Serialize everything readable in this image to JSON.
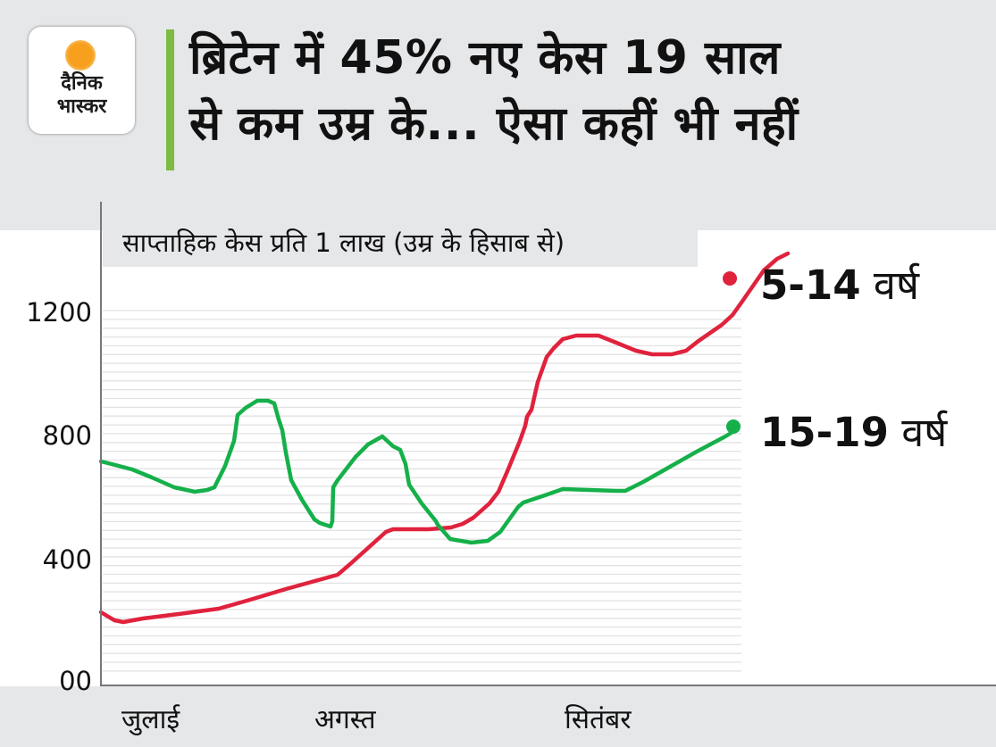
{
  "header": {
    "logo": {
      "line1": "दैनिक",
      "line2": "भास्कर",
      "icon": "sun-icon",
      "sun_color": "#f7a01e"
    },
    "accent_color": "#7dbb42",
    "title_line1": "ब्रिटेन में 45% नए केस 19 साल",
    "title_line2": "से कम उम्र के... ऐसा कहीं भी नहीं"
  },
  "chart": {
    "subtitle": "साप्ताहिक केस प्रति 1 लाख (उम्र के हिसाब से)",
    "y_ticks": [
      "1200",
      "800",
      "400",
      "00"
    ],
    "x_ticks": [
      "जुलाई",
      "अगस्त",
      "सितंबर"
    ],
    "legend": [
      {
        "num": "5-14",
        "unit": " वर्ष",
        "color": "#e0223d"
      },
      {
        "num": "15-19",
        "unit": " वर्ष",
        "color": "#15b04a"
      }
    ]
  },
  "chart_data": {
    "type": "line",
    "title": "ब्रिटेन में 45% नए केस 19 साल से कम उम्र के... ऐसा कहीं भी नहीं",
    "subtitle": "साप्ताहिक केस प्रति 1 लाख (उम्र के हिसाब से)",
    "xlabel": "",
    "ylabel": "साप्ताहिक केस प्रति 1 लाख",
    "x_tick_labels": [
      "जुलाई",
      "अगस्त",
      "सितंबर"
    ],
    "y_tick_labels": [
      "00",
      "400",
      "800",
      "1200"
    ],
    "ylim": [
      0,
      1350
    ],
    "grid": true,
    "legend_position": "right, inline at line ends",
    "x": [
      "Jul-start",
      "Jul-mid",
      "Jul-late",
      "Aug-early",
      "Aug-mid",
      "Aug-late",
      "Sep-early",
      "Sep-mid",
      "Sep-late",
      "Sep-end"
    ],
    "series": [
      {
        "name": "5-14 वर्ष",
        "color": "#e0223d",
        "values": [
          225,
          200,
          240,
          340,
          500,
          520,
          990,
          1030,
          970,
          1320
        ]
      },
      {
        "name": "15-19 वर्ष",
        "color": "#15b04a",
        "values": [
          720,
          620,
          910,
          520,
          790,
          460,
          590,
          630,
          620,
          835
        ]
      }
    ]
  }
}
